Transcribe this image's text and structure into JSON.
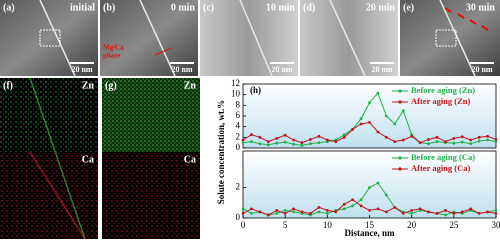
{
  "images": [
    {
      "label": "(a)",
      "caption": "initial",
      "scale": "20 nm"
    },
    {
      "label": "(b)",
      "caption": "0 min",
      "scale": "20 nm",
      "annotation": [
        "Mg/Ca",
        "phase"
      ]
    },
    {
      "label": "(c)",
      "caption": "10 min",
      "scale": "20 nm"
    },
    {
      "label": "(d)",
      "caption": "20 min",
      "scale": "20 nm"
    },
    {
      "label": "(e)",
      "caption": "30 min",
      "scale": "20 nm"
    }
  ],
  "maps": [
    {
      "label": "(f)",
      "top": "Zn",
      "bottom": "Ca"
    },
    {
      "label": "(g)",
      "top": "Zn",
      "bottom": "Ca"
    }
  ],
  "chart_data": [
    {
      "type": "line",
      "panel_label": "(h)",
      "ylabel": "Solute concentration, wt.%",
      "xlim": [
        0,
        30
      ],
      "ylim": [
        0,
        12
      ],
      "yticks": [
        0,
        2,
        4,
        6,
        8,
        10,
        12
      ],
      "x": [
        0,
        1,
        2,
        3,
        4,
        5,
        6,
        7,
        8,
        9,
        10,
        11,
        12,
        13,
        14,
        15,
        16,
        17,
        18,
        19,
        20,
        21,
        22,
        23,
        24,
        25,
        26,
        27,
        28,
        29,
        30
      ],
      "series": [
        {
          "name": "Before aging (Zn)",
          "color": "#22b04b",
          "values": [
            1.0,
            1.2,
            0.8,
            0.6,
            0.9,
            1.1,
            0.7,
            0.5,
            0.8,
            1.0,
            1.2,
            1.5,
            2.5,
            3.5,
            5.5,
            8.5,
            10.3,
            6.0,
            4.5,
            7.0,
            2.5,
            1.0,
            0.8,
            1.2,
            1.0,
            0.9,
            1.1,
            0.8,
            1.3,
            1.5,
            1.2
          ]
        },
        {
          "name": "After aging (Zn)",
          "color": "#c0141a",
          "values": [
            1.5,
            2.5,
            2.0,
            1.2,
            1.8,
            2.4,
            1.5,
            1.0,
            1.6,
            2.2,
            1.5,
            1.2,
            2.0,
            3.5,
            4.5,
            4.8,
            3.0,
            2.0,
            1.2,
            1.5,
            2.2,
            1.0,
            1.6,
            2.0,
            1.2,
            1.8,
            2.1,
            1.5,
            2.0,
            2.2,
            1.6
          ]
        }
      ]
    },
    {
      "type": "line",
      "xlabel": "Distance, nm",
      "xlim": [
        0,
        30
      ],
      "xticks": [
        0,
        5,
        10,
        15,
        20,
        25,
        30
      ],
      "ylim": [
        0,
        4.4
      ],
      "yticks": [
        0,
        2
      ],
      "x": [
        0,
        1,
        2,
        3,
        4,
        5,
        6,
        7,
        8,
        9,
        10,
        11,
        12,
        13,
        14,
        15,
        16,
        17,
        18,
        19,
        20,
        21,
        22,
        23,
        24,
        25,
        26,
        27,
        28,
        29,
        30
      ],
      "series": [
        {
          "name": "Before aging (Ca)",
          "color": "#22b04b",
          "values": [
            0.6,
            0.3,
            0.4,
            0.2,
            0.3,
            0.5,
            0.4,
            0.3,
            0.2,
            0.4,
            0.3,
            0.5,
            0.6,
            0.8,
            1.2,
            2.0,
            2.3,
            1.5,
            0.7,
            0.4,
            0.3,
            0.5,
            0.4,
            0.3,
            0.2,
            0.4,
            0.3,
            0.5,
            0.3,
            0.4,
            0.5
          ]
        },
        {
          "name": "After aging (Ca)",
          "color": "#c0141a",
          "values": [
            0.3,
            0.6,
            0.4,
            0.2,
            0.5,
            0.3,
            0.6,
            0.4,
            0.3,
            0.7,
            0.5,
            0.4,
            0.9,
            1.2,
            0.8,
            0.5,
            0.6,
            0.4,
            0.7,
            0.3,
            0.5,
            0.6,
            0.4,
            0.3,
            0.5,
            0.3,
            0.4,
            0.6,
            0.3,
            0.4,
            0.3
          ]
        }
      ]
    }
  ]
}
